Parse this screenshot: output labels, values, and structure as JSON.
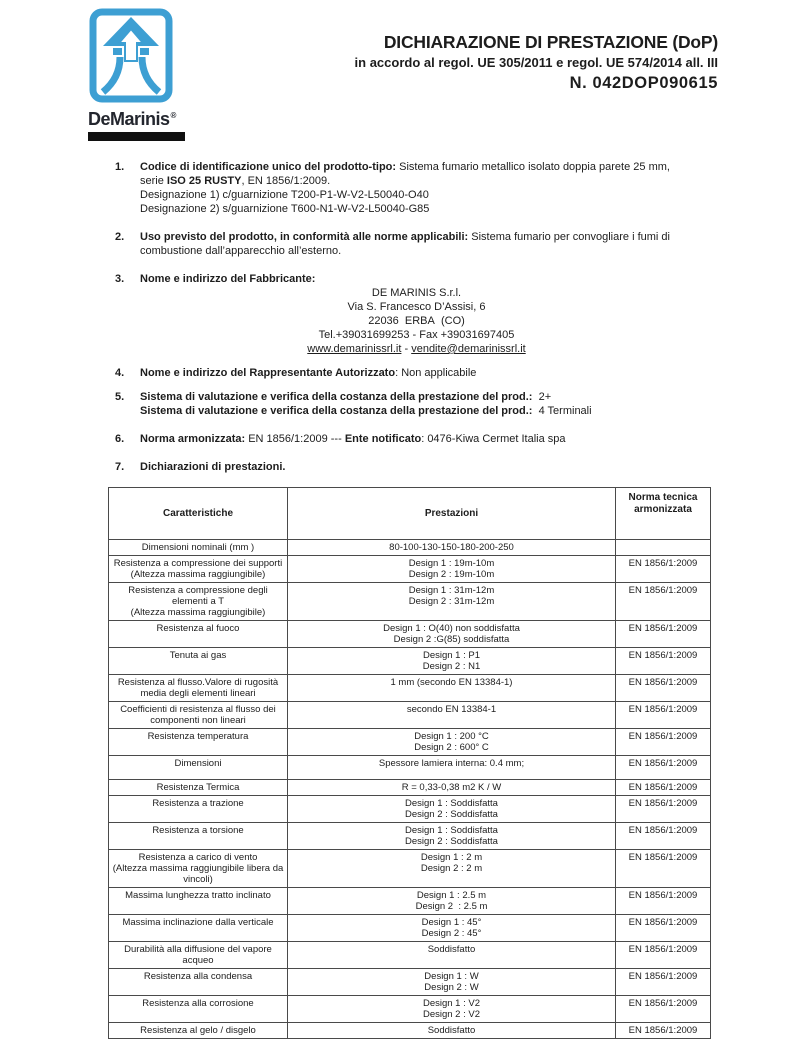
{
  "colors": {
    "logo_blue": "#3d9fd3",
    "bar_black": "#101010",
    "text": "#1d1d1d",
    "table_border": "#4a4a4a"
  },
  "logo": {
    "brand": "DeMarinis",
    "mark": "®"
  },
  "header": {
    "title": "DICHIARAZIONE DI PRESTAZIONE (DoP)",
    "subtitle": "in accordo al regol. UE 305/2011 e regol. UE 574/2014 all. III",
    "doc_number": "N. 042DOP090615"
  },
  "items": {
    "i1": {
      "num": "1.",
      "b1": "Codice di identificazione unico del prodotto-tipo:",
      "t1": " Sistema fumario metallico isolato doppia parete 25 mm, serie ",
      "b2": "ISO 25 RUSTY",
      "t2": ", EN 1856/1:2009.",
      "l2": "Designazione 1) c/guarnizione T200-P1-W-V2-L50040-O40",
      "l3": "Designazione 2) s/guarnizione T600-N1-W-V2-L50040-G85"
    },
    "i2": {
      "num": "2.",
      "b1": "Uso previsto del prodotto, in conformità alle norme applicabili:",
      "t1": " Sistema fumario per convogliare i fumi di combustione dall’apparecchio all’esterno."
    },
    "i3": {
      "num": "3.",
      "b1": "Nome e indirizzo del Fabbricante:",
      "addr1": "DE MARINIS S.r.l.",
      "addr2": "Via S. Francesco D’Assisi, 6",
      "addr3": "22036  ERBA  (CO)",
      "addr4": "Tel.+39031699253 - Fax +39031697405",
      "link1": "www.demarinissrl.it",
      "sep": " - ",
      "link2": "vendite@demarinissrl.it"
    },
    "i4": {
      "num": "4.",
      "b1": "Nome e indirizzo del Rappresentante Autorizzato",
      "t1": ": Non applicabile"
    },
    "i5": {
      "num": "5.",
      "b1": "Sistema di valutazione e verifica della costanza della prestazione del prod.:",
      "t1": "  2+",
      "b2": "Sistema di valutazione e verifica della costanza della prestazione del prod.:",
      "t2": "  4 Terminali"
    },
    "i6": {
      "num": "6.",
      "b1": "Norma armonizzata:",
      "t1": " EN 1856/1:2009 --- ",
      "b2": "Ente notificato",
      "t2": ": 0476-Kiwa Cermet Italia spa"
    },
    "i7": {
      "num": "7.",
      "b1": "Dichiarazioni di prestazioni."
    }
  },
  "table": {
    "headers": {
      "caratteristiche": "Caratteristiche",
      "prestazioni": "Prestazioni",
      "norma": "Norma tecnica armonizzata"
    },
    "rows": [
      {
        "c": [
          "Dimensioni nominali (mm )"
        ],
        "p": [
          "80-100-130-150-180-200-250"
        ],
        "n": ""
      },
      {
        "c": [
          "Resistenza a compressione dei supporti",
          "(Altezza massima raggiungibile)"
        ],
        "p": [
          "Design 1 : 19m-10m",
          "Design 2 : 19m-10m"
        ],
        "n": "EN 1856/1:2009"
      },
      {
        "c": [
          "Resistenza a compressione degli",
          "elementi a T",
          "(Altezza massima raggiungibile)"
        ],
        "p": [
          "Design 1 : 31m-12m",
          "Design 2 : 31m-12m"
        ],
        "n": "EN 1856/1:2009"
      },
      {
        "c": [
          "Resistenza al fuoco"
        ],
        "p": [
          "Design 1 : O(40) non soddisfatta",
          "Design 2 :G(85) soddisfatta"
        ],
        "n": "EN 1856/1:2009"
      },
      {
        "c": [
          "Tenuta ai gas"
        ],
        "p": [
          "Design 1 : P1",
          "Design 2 : N1"
        ],
        "n": "EN 1856/1:2009"
      },
      {
        "c": [
          "Resistenza al flusso.Valore di rugosità",
          "media degli elementi lineari"
        ],
        "p": [
          "1 mm (secondo EN 13384-1)"
        ],
        "n": "EN 1856/1:2009"
      },
      {
        "c": [
          "Coefficienti di resistenza al flusso dei",
          "componenti non lineari"
        ],
        "p": [
          "secondo EN 13384-1"
        ],
        "n": "EN 1856/1:2009"
      },
      {
        "c": [
          "Resistenza temperatura"
        ],
        "p": [
          "Design 1 : 200 °C",
          "Design 2 : 600° C"
        ],
        "n": "EN 1856/1:2009"
      },
      {
        "c": [
          "Dimensioni"
        ],
        "p": [
          "Spessore lamiera interna: 0.4 mm;"
        ],
        "n": "EN 1856/1:2009",
        "h": 24
      },
      {
        "c": [
          "Resistenza Termica"
        ],
        "p": [
          "R = 0,33-0,38 m2 K / W"
        ],
        "n": "EN 1856/1:2009"
      },
      {
        "c": [
          "Resistenza a trazione"
        ],
        "p": [
          "Design 1 : Soddisfatta",
          "Design 2 : Soddisfatta"
        ],
        "n": "EN 1856/1:2009"
      },
      {
        "c": [
          "Resistenza a torsione"
        ],
        "p": [
          "Design 1 : Soddisfatta",
          "Design 2 : Soddisfatta"
        ],
        "n": "EN 1856/1:2009"
      },
      {
        "c": [
          "Resistenza a carico di vento",
          "(Altezza massima raggiungibile libera da",
          "vincoli)"
        ],
        "p": [
          "Design 1 : 2 m",
          "Design 2 : 2 m"
        ],
        "n": "EN 1856/1:2009"
      },
      {
        "c": [
          "Massima lunghezza tratto inclinato"
        ],
        "p": [
          "Design 1 : 2.5 m",
          "Design 2  : 2.5 m"
        ],
        "n": "EN 1856/1:2009"
      },
      {
        "c": [
          "Massima inclinazione dalla verticale"
        ],
        "p": [
          "Design 1 : 45°",
          "Design 2 : 45°"
        ],
        "n": "EN 1856/1:2009"
      },
      {
        "c": [
          "Durabilità alla diffusione del vapore",
          "acqueo"
        ],
        "p": [
          "Soddisfatto"
        ],
        "n": "EN 1856/1:2009"
      },
      {
        "c": [
          "Resistenza alla condensa"
        ],
        "p": [
          "Design 1 : W",
          "Design 2 : W"
        ],
        "n": "EN 1856/1:2009"
      },
      {
        "c": [
          "Resistenza alla corrosione"
        ],
        "p": [
          "Design 1 : V2",
          "Design 2 : V2"
        ],
        "n": "EN 1856/1:2009"
      },
      {
        "c": [
          "Resistenza al gelo / disgelo"
        ],
        "p": [
          "Soddisfatto"
        ],
        "n": "EN 1856/1:2009"
      }
    ]
  }
}
